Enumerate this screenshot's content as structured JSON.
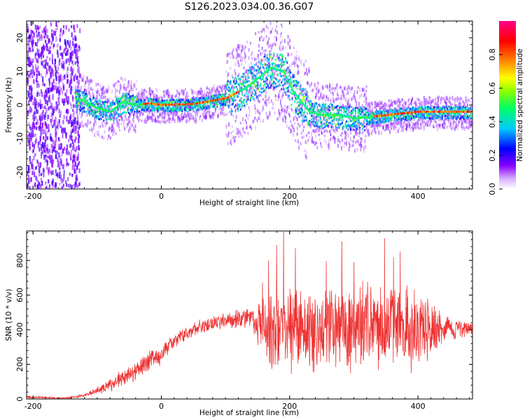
{
  "title": "S126.2023.034.00.36.G07",
  "chart_data": [
    {
      "type": "heatmap",
      "title": "S126.2023.034.00.36.G07",
      "xlabel": "Height of straight line (km)",
      "ylabel": "Frequency (Hz)",
      "xlim": [
        -210,
        485
      ],
      "ylim": [
        -25,
        25
      ],
      "x_ticks": [
        "-200",
        "0",
        "200",
        "400"
      ],
      "y_ticks": [
        "20",
        "10",
        "0",
        "-10",
        "-20"
      ],
      "colorbar": {
        "label": "Normalized spectral amplitude",
        "range": [
          0,
          1
        ],
        "ticks": [
          "0.0",
          "0.2",
          "0.4",
          "0.6",
          "0.8"
        ],
        "colors": [
          "#ffffff",
          "#8800ff",
          "#0000ff",
          "#00ffff",
          "#00ff00",
          "#ffff00",
          "#ff8800",
          "#ff0000",
          "#ff0088"
        ]
      },
      "ridge": {
        "x": [
          -135,
          -120,
          -100,
          -80,
          -60,
          -40,
          -20,
          0,
          50,
          100,
          130,
          150,
          170,
          190,
          205,
          230,
          250,
          280,
          300,
          350,
          400,
          485
        ],
        "frequency": [
          2,
          1,
          -1,
          -2,
          1,
          0,
          0.5,
          0,
          0.3,
          2,
          5,
          8,
          11,
          10,
          4,
          -2,
          -3,
          -3,
          -4,
          -3,
          -2,
          -2
        ]
      }
    },
    {
      "type": "line",
      "xlabel": "Height of straight line (km)",
      "ylabel": "SNR (10 * v/v)",
      "xlim": [
        -210,
        485
      ],
      "ylim": [
        0,
        970
      ],
      "x_ticks": [
        "-200",
        "0",
        "200",
        "400"
      ],
      "y_ticks": [
        "0",
        "200",
        "400",
        "600",
        "800"
      ],
      "color": "#ee3333",
      "envelope": {
        "x": [
          -210,
          -150,
          -120,
          -100,
          -80,
          -60,
          -40,
          -20,
          0,
          20,
          40,
          60,
          100,
          140,
          170,
          200,
          250,
          300,
          350,
          400,
          450,
          485
        ],
        "mean": [
          10,
          5,
          20,
          50,
          80,
          120,
          160,
          220,
          260,
          340,
          380,
          420,
          450,
          470,
          400,
          420,
          400,
          420,
          420,
          420,
          400,
          410
        ],
        "spread": [
          8,
          5,
          10,
          20,
          40,
          50,
          60,
          70,
          60,
          40,
          40,
          40,
          50,
          60,
          250,
          280,
          250,
          250,
          260,
          250,
          60,
          50
        ]
      }
    }
  ]
}
